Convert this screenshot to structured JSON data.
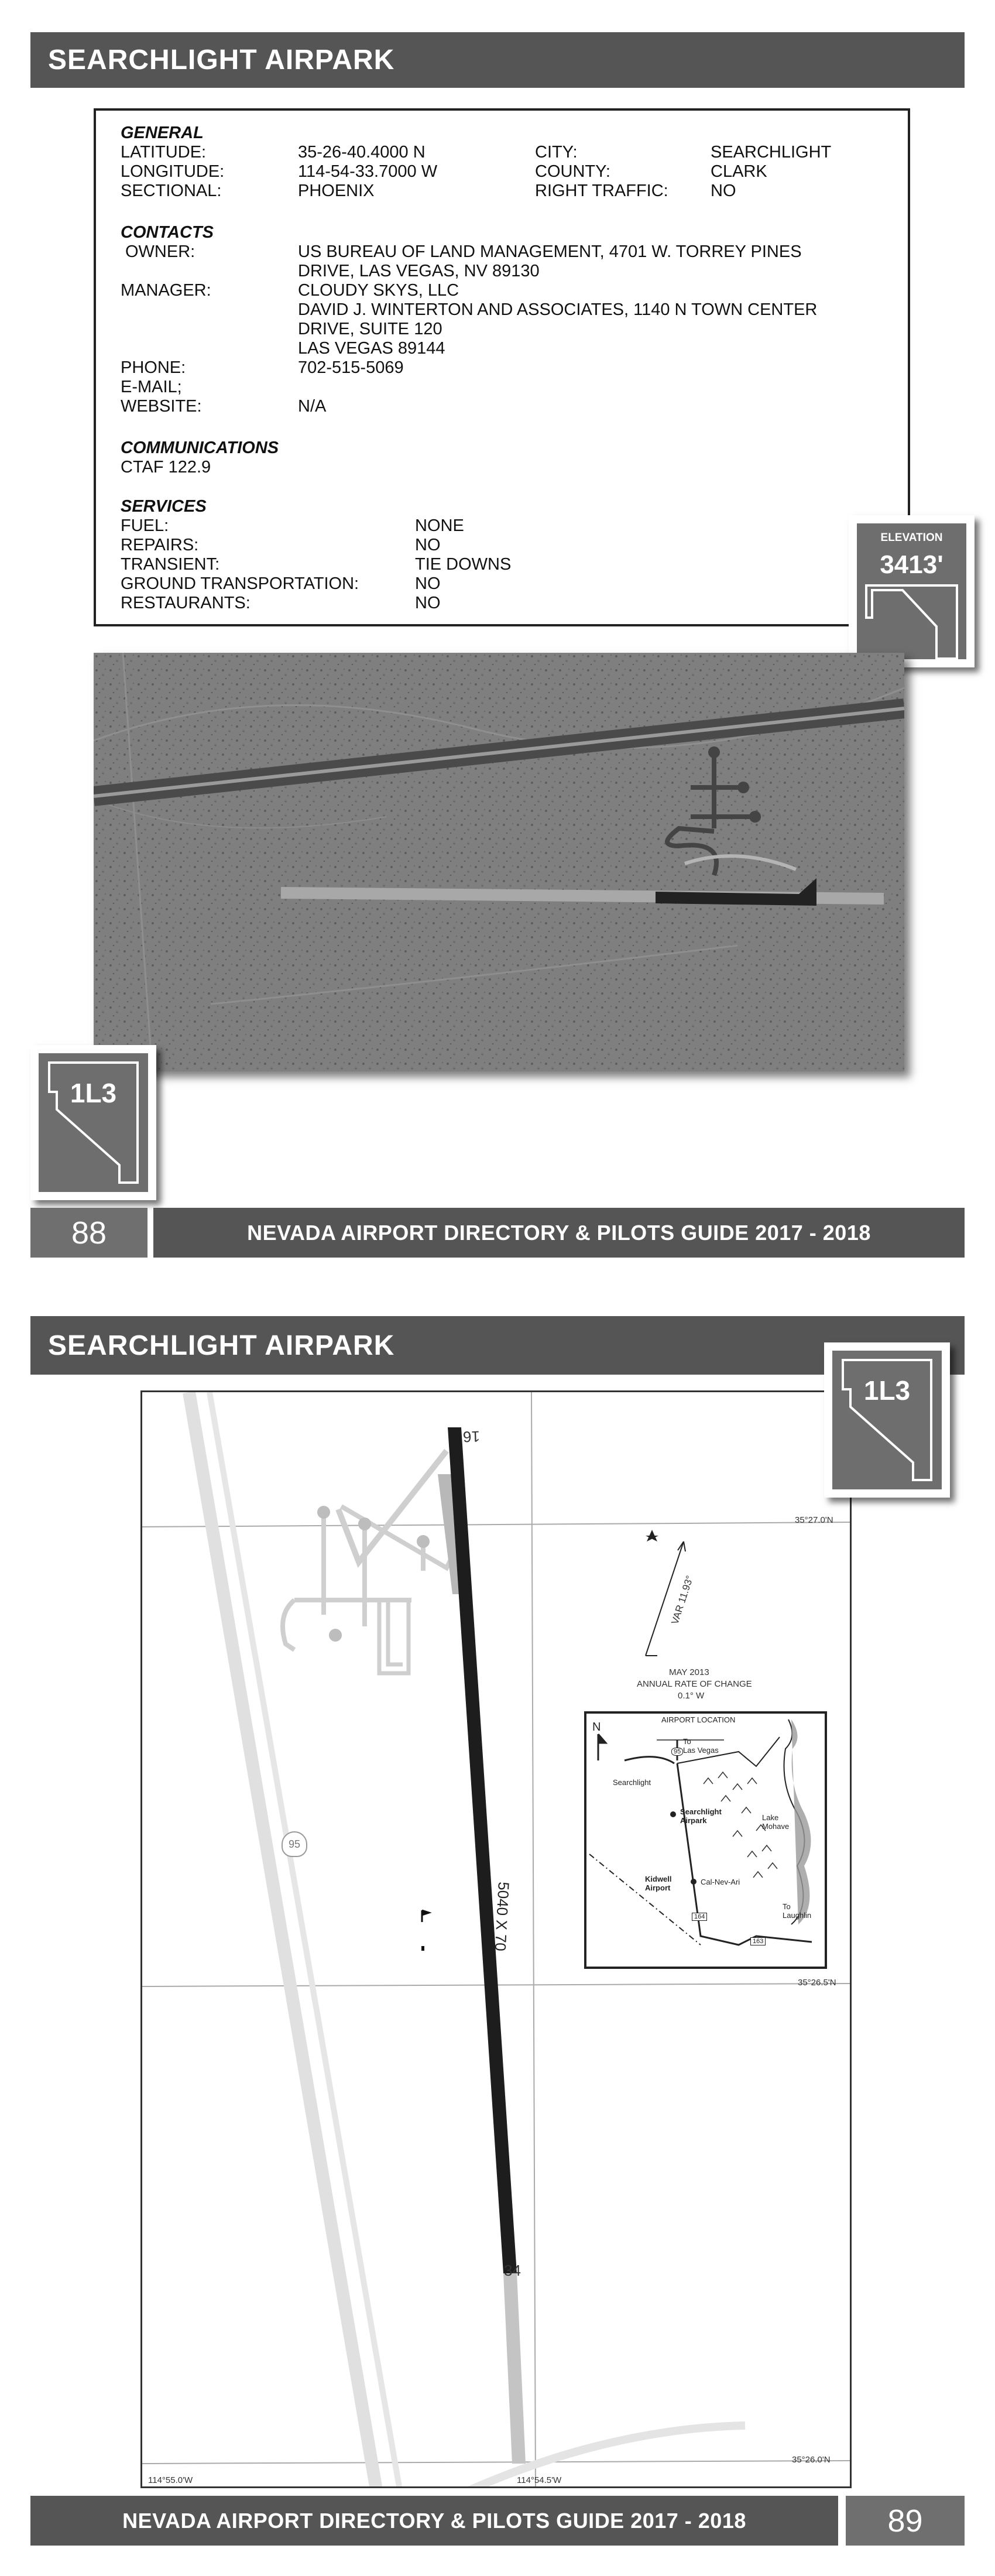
{
  "page1": {
    "title": "SEARCHLIGHT AIRPARK",
    "general": {
      "heading": "GENERAL",
      "latitude_label": "LATITUDE:",
      "latitude": "35-26-40.4000 N",
      "longitude_label": "LONGITUDE:",
      "longitude": "114-54-33.7000 W",
      "sectional_label": "SECTIONAL:",
      "sectional": "PHOENIX",
      "city_label": "CITY:",
      "city": "SEARCHLIGHT",
      "county_label": "COUNTY:",
      "county": "CLARK",
      "right_traffic_label": "RIGHT TRAFFIC:",
      "right_traffic": "NO"
    },
    "contacts": {
      "heading": "CONTACTS",
      "owner_label": "OWNER:",
      "owner_line1": "US BUREAU OF LAND MANAGEMENT, 4701 W. TORREY PINES",
      "owner_line2": "DRIVE, LAS VEGAS, NV 89130",
      "manager_label": "MANAGER:",
      "manager_line1": "CLOUDY SKYS, LLC",
      "manager_line2": "DAVID J. WINTERTON AND ASSOCIATES, 1140 N TOWN CENTER",
      "manager_line3": "DRIVE, SUITE 120",
      "manager_line4": "LAS VEGAS 89144",
      "phone_label": "PHONE:",
      "phone": "702-515-5069",
      "email_label": "E-MAIL;",
      "website_label": "WEBSITE:",
      "website": "N/A"
    },
    "communications": {
      "heading": "COMMUNICATIONS",
      "ctaf": "CTAF 122.9"
    },
    "services": {
      "heading": "SERVICES",
      "fuel_label": "FUEL:",
      "fuel": "NONE",
      "repairs_label": "REPAIRS:",
      "repairs": "NO",
      "transient_label": "TRANSIENT:",
      "transient": "TIE DOWNS",
      "ground_label": "GROUND TRANSPORTATION:",
      "ground": "NO",
      "restaurants_label": "RESTAURANTS:",
      "restaurants": "NO"
    },
    "elevation_label": "ELEVATION",
    "elevation": "3413'",
    "airport_id": "1L3",
    "page_number": "88",
    "footer": "NEVADA AIRPORT DIRECTORY & PILOTS GUIDE 2017 - 2018"
  },
  "page2": {
    "title": "SEARCHLIGHT AIRPARK",
    "airport_id": "1L3",
    "runway_top": "16",
    "runway_bottom": "34",
    "runway_dims": "5040 X 70",
    "lat_top": "35°27.0'N",
    "lat_mid": "35°26.5'N",
    "lat_bottom": "35°26.0'N",
    "lon_left": "114°55.0'W",
    "lon_mid": "114°54.5'W",
    "var": "VAR 11.93°",
    "var_date": "MAY 2013",
    "var_change_line1": "ANNUAL RATE OF CHANGE",
    "var_change_line2": "0.1° W",
    "highway": "95",
    "location_map": {
      "title": "AIRPORT LOCATION",
      "north": "N",
      "to_las_vegas_1": "To",
      "to_las_vegas_2": "Las Vegas",
      "searchlight": "Searchlight",
      "searchlight_airpark_1": "Searchlight",
      "searchlight_airpark_2": "Airpark",
      "lake_mohave_1": "Lake",
      "lake_mohave_2": "Mohave",
      "kidwell_1": "Kidwell",
      "kidwell_2": "Airport",
      "cal_nev_ari": "Cal-Nev-Ari",
      "to_laughlin_1": "To",
      "to_laughlin_2": "Laughlin",
      "shield_95": "95",
      "shield_164": "164",
      "shield_163": "163"
    },
    "page_number": "89",
    "footer": "NEVADA AIRPORT DIRECTORY & PILOTS GUIDE 2017 - 2018"
  }
}
